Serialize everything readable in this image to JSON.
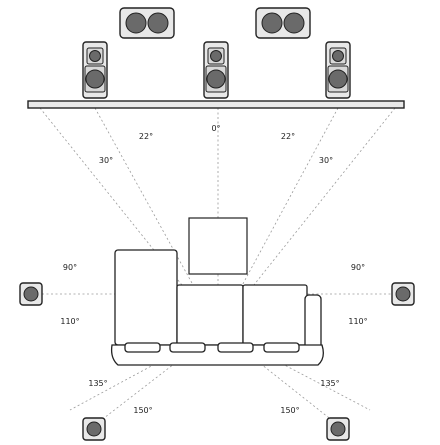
{
  "colors": {
    "stroke": "#222222",
    "speaker_fill": "#e8e8e8",
    "driver_fill": "#6a6a6a",
    "guide_line": "#9a9a9a",
    "screen_fill": "#ffffff"
  },
  "angle_labels": {
    "front_center": "0°",
    "front_left_inner": "22°",
    "front_right_inner": "22°",
    "front_left_outer": "30°",
    "front_right_outer": "30°",
    "side_left_upper": "90°",
    "side_right_upper": "90°",
    "side_left_lower": "110°",
    "side_right_lower": "110°",
    "rear_left_upper": "135°",
    "rear_right_upper": "135°",
    "rear_left_lower": "150°",
    "rear_right_lower": "150°"
  },
  "icons": {
    "overhead_speaker": "dual-driver-ceiling-speaker-icon",
    "front_speaker": "two-way-bookshelf-speaker-icon",
    "surround_speaker": "single-driver-speaker-icon",
    "screen": "tv-screen-icon",
    "seat": "sofa-icon"
  }
}
